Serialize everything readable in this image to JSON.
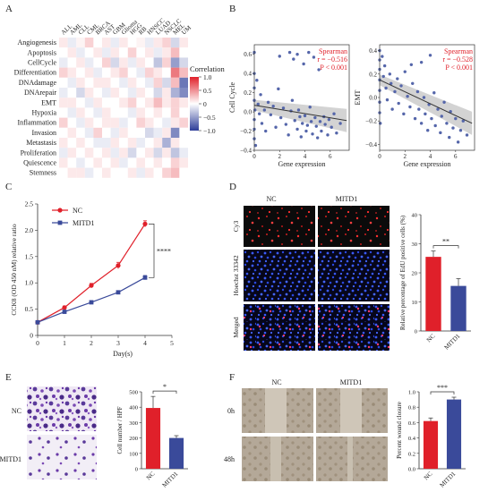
{
  "panels": {
    "a": "A",
    "b": "B",
    "c": "C",
    "d": "D",
    "e": "E",
    "f": "F"
  },
  "heatmap": {
    "rows": [
      "Angiogenesis",
      "Apoptosis",
      "CellCycle",
      "Differentiation",
      "DNAdamage",
      "DNArepair",
      "EMT",
      "Hypoxia",
      "Inflammation",
      "Invasion",
      "Metastasis",
      "Proliferation",
      "Quiescence",
      "Stemness"
    ],
    "cols": [
      "ALL",
      "AML",
      "CLL",
      "CML",
      "BRCA",
      "AST",
      "GBM",
      "Glioma",
      "HGG",
      "RB",
      "HNSCC",
      "LUAD",
      "NSCLC",
      "MEL",
      "UM"
    ],
    "legend_title": "Correlation",
    "legend_ticks": [
      "1.0",
      "0.5",
      "0",
      "−0.5",
      "−1.0"
    ],
    "values": [
      [
        0.1,
        -0.1,
        0.05,
        0.2,
        0.0,
        0.1,
        -0.1,
        0.1,
        0.0,
        0.05,
        -0.1,
        0.1,
        0.2,
        -0.2,
        0.1
      ],
      [
        0.0,
        0.1,
        -0.1,
        0.0,
        0.1,
        -0.1,
        0.1,
        0.0,
        0.2,
        0.0,
        0.1,
        -0.1,
        0.1,
        0.3,
        0.0
      ],
      [
        -0.1,
        0.0,
        0.1,
        -0.1,
        0.0,
        0.2,
        -0.2,
        0.1,
        -0.1,
        0.1,
        0.0,
        -0.3,
        0.2,
        -0.5,
        -0.2
      ],
      [
        0.2,
        0.1,
        0.0,
        0.1,
        -0.1,
        0.0,
        0.1,
        0.2,
        0.0,
        -0.1,
        0.2,
        0.1,
        0.0,
        0.6,
        0.3
      ],
      [
        0.0,
        -0.1,
        0.1,
        0.0,
        0.1,
        0.1,
        0.0,
        -0.1,
        0.1,
        0.0,
        -0.1,
        0.2,
        -0.2,
        0.3,
        -0.7
      ],
      [
        -0.1,
        0.0,
        -0.2,
        0.1,
        0.0,
        -0.1,
        0.1,
        0.0,
        -0.1,
        0.1,
        0.0,
        -0.2,
        0.1,
        -0.4,
        -0.6
      ],
      [
        0.1,
        0.1,
        0.0,
        -0.1,
        0.1,
        0.0,
        0.0,
        0.1,
        0.2,
        0.0,
        0.1,
        0.3,
        0.1,
        0.2,
        0.1
      ],
      [
        0.0,
        -0.1,
        0.1,
        0.0,
        -0.1,
        0.1,
        0.0,
        0.0,
        -0.1,
        0.1,
        0.0,
        0.1,
        0.0,
        0.2,
        0.0
      ],
      [
        0.2,
        0.0,
        -0.1,
        0.1,
        0.0,
        0.1,
        0.1,
        -0.1,
        0.0,
        0.2,
        0.1,
        0.0,
        -0.1,
        0.1,
        0.2
      ],
      [
        0.0,
        0.1,
        0.0,
        -0.1,
        0.2,
        0.0,
        -0.1,
        0.1,
        0.0,
        0.0,
        -0.2,
        -0.1,
        0.1,
        -0.6,
        0.0
      ],
      [
        0.1,
        0.0,
        0.1,
        0.0,
        -0.1,
        -0.1,
        0.1,
        0.0,
        0.1,
        -0.1,
        0.0,
        0.1,
        -0.4,
        0.1,
        0.0
      ],
      [
        -0.1,
        0.1,
        0.0,
        0.1,
        0.0,
        0.1,
        -0.1,
        0.1,
        -0.2,
        0.0,
        0.1,
        -0.2,
        0.1,
        -0.3,
        -0.1
      ],
      [
        0.1,
        0.0,
        -0.1,
        0.0,
        0.1,
        0.0,
        0.1,
        -0.1,
        0.0,
        0.1,
        0.0,
        0.1,
        0.0,
        0.2,
        0.1
      ],
      [
        0.0,
        0.1,
        0.1,
        -0.1,
        0.0,
        0.1,
        0.0,
        0.0,
        0.1,
        -0.1,
        0.1,
        0.0,
        0.2,
        0.3,
        0.0
      ]
    ]
  },
  "scatter": [
    {
      "ylabel": "Cell Cycle",
      "xlabel": "Gene expression",
      "stat_method": "Spearman",
      "stat_r": "r = −0.516",
      "stat_p": "P < 0.001",
      "xlim": [
        0,
        7.5
      ],
      "ylim": [
        -0.4,
        0.7
      ],
      "xticks": [
        "0",
        "2",
        "4",
        "6"
      ],
      "yticks": [
        "−0.4",
        "−0.2",
        "0.0",
        "0.2",
        "0.4",
        "0.6"
      ],
      "fit": [
        [
          0,
          0.07
        ],
        [
          7.3,
          -0.09
        ]
      ],
      "points": [
        [
          0,
          0.62
        ],
        [
          0,
          0.4
        ],
        [
          0,
          0.25
        ],
        [
          0,
          0.12
        ],
        [
          0.05,
          0.02
        ],
        [
          0,
          -0.08
        ],
        [
          0,
          -0.18
        ],
        [
          0,
          -0.28
        ],
        [
          0.1,
          -0.35
        ],
        [
          0.2,
          0.33
        ],
        [
          0.3,
          0.08
        ],
        [
          0.4,
          -0.02
        ],
        [
          0.5,
          0.18
        ],
        [
          0.6,
          -0.12
        ],
        [
          0.8,
          0.02
        ],
        [
          0.9,
          -0.2
        ],
        [
          1.1,
          0.1
        ],
        [
          1.3,
          -0.03
        ],
        [
          1.5,
          0.06
        ],
        [
          1.7,
          -0.16
        ],
        [
          1.9,
          0.24
        ],
        [
          2.1,
          -0.06
        ],
        [
          2.3,
          0.04
        ],
        [
          2.5,
          -0.13
        ],
        [
          2.7,
          -0.24
        ],
        [
          2.9,
          0.01
        ],
        [
          3.0,
          0.12
        ],
        [
          3.2,
          -0.09
        ],
        [
          3.4,
          -0.18
        ],
        [
          3.5,
          0.02
        ],
        [
          3.6,
          -0.05
        ],
        [
          3.7,
          -0.26
        ],
        [
          3.8,
          -0.12
        ],
        [
          4.0,
          -0.04
        ],
        [
          4.1,
          -0.2
        ],
        [
          4.2,
          -0.14
        ],
        [
          4.4,
          0.05
        ],
        [
          4.5,
          -0.1
        ],
        [
          4.6,
          -0.23
        ],
        [
          4.8,
          -0.06
        ],
        [
          4.9,
          -0.15
        ],
        [
          5.0,
          -0.27
        ],
        [
          5.2,
          -0.1
        ],
        [
          5.3,
          -0.2
        ],
        [
          5.5,
          -0.05
        ],
        [
          5.6,
          -0.13
        ],
        [
          5.8,
          -0.24
        ],
        [
          5.9,
          -0.08
        ],
        [
          6.1,
          -0.16
        ],
        [
          6.3,
          -0.02
        ],
        [
          6.5,
          -0.22
        ],
        [
          6.8,
          -0.12
        ],
        [
          2.0,
          0.58
        ],
        [
          2.8,
          0.62
        ],
        [
          3.1,
          0.55
        ],
        [
          3.4,
          0.6
        ],
        [
          3.9,
          0.5
        ],
        [
          4.3,
          0.62
        ],
        [
          4.7,
          0.57
        ],
        [
          5.1,
          0.44
        ]
      ]
    },
    {
      "ylabel": "EMT",
      "xlabel": "Gene expression",
      "stat_method": "Spearman",
      "stat_r": "r = −0.528",
      "stat_p": "P < 0.001",
      "xlim": [
        0,
        7.5
      ],
      "ylim": [
        -0.45,
        0.45
      ],
      "xticks": [
        "0",
        "2",
        "4",
        "6"
      ],
      "yticks": [
        "−0.4",
        "−0.2",
        "0.0",
        "0.2",
        "0.4"
      ],
      "fit": [
        [
          0,
          0.15
        ],
        [
          7.3,
          -0.22
        ]
      ],
      "points": [
        [
          0,
          0.4
        ],
        [
          0,
          0.32
        ],
        [
          0,
          0.24
        ],
        [
          0,
          0.15
        ],
        [
          0,
          0.06
        ],
        [
          0,
          -0.04
        ],
        [
          0,
          -0.13
        ],
        [
          0.05,
          -0.22
        ],
        [
          0.2,
          0.35
        ],
        [
          0.3,
          0.18
        ],
        [
          0.4,
          0.27
        ],
        [
          0.5,
          0.08
        ],
        [
          0.6,
          -0.02
        ],
        [
          0.8,
          0.2
        ],
        [
          0.9,
          0.12
        ],
        [
          1.0,
          -0.1
        ],
        [
          1.2,
          0.05
        ],
        [
          1.4,
          0.16
        ],
        [
          1.5,
          -0.05
        ],
        [
          1.7,
          0.1
        ],
        [
          1.9,
          -0.14
        ],
        [
          2.0,
          0.22
        ],
        [
          2.2,
          0.01
        ],
        [
          2.4,
          -0.08
        ],
        [
          2.6,
          0.12
        ],
        [
          2.8,
          -0.18
        ],
        [
          3.0,
          0.05
        ],
        [
          3.1,
          -0.1
        ],
        [
          3.3,
          -0.22
        ],
        [
          3.5,
          0.0
        ],
        [
          3.6,
          -0.14
        ],
        [
          3.8,
          -0.28
        ],
        [
          3.9,
          -0.06
        ],
        [
          4.1,
          -0.18
        ],
        [
          4.3,
          0.04
        ],
        [
          4.4,
          -0.24
        ],
        [
          4.6,
          -0.1
        ],
        [
          4.8,
          -0.3
        ],
        [
          4.9,
          -0.16
        ],
        [
          5.1,
          -0.04
        ],
        [
          5.3,
          -0.22
        ],
        [
          5.5,
          -0.34
        ],
        [
          5.6,
          -0.12
        ],
        [
          5.8,
          -0.26
        ],
        [
          6.0,
          -0.18
        ],
        [
          6.2,
          -0.38
        ],
        [
          6.4,
          -0.28
        ],
        [
          6.6,
          -0.2
        ],
        [
          6.9,
          -0.32
        ],
        [
          3.3,
          0.3
        ],
        [
          4.0,
          0.36
        ],
        [
          2.5,
          0.28
        ]
      ]
    }
  ],
  "cck8": {
    "ylabel": "CCK8 (OD 450 nM) relative ratio",
    "xlabel": "Day(s)",
    "xlim": [
      0,
      5
    ],
    "ylim": [
      0,
      2.5
    ],
    "xticks": [
      "0",
      "1",
      "2",
      "3",
      "4",
      "5"
    ],
    "yticks": [
      "0",
      "0.5",
      "1.0",
      "1.5",
      "2.0",
      "2.5"
    ],
    "x": [
      0,
      1,
      2,
      3,
      4
    ],
    "series": [
      {
        "name": "NC",
        "color": "#e0202a",
        "values": [
          0.25,
          0.53,
          0.95,
          1.33,
          2.12
        ],
        "errors": [
          0.02,
          0.03,
          0.04,
          0.06,
          0.06
        ]
      },
      {
        "name": "MITD1",
        "color": "#3a4a9a",
        "values": [
          0.25,
          0.45,
          0.63,
          0.82,
          1.1
        ],
        "errors": [
          0.02,
          0.02,
          0.03,
          0.03,
          0.04
        ]
      }
    ],
    "significance": "****"
  },
  "edu": {
    "col_labels": [
      "NC",
      "MITD1"
    ],
    "row_labels": [
      "Cy3",
      "Hoechst 33342",
      "Merged"
    ],
    "bar": {
      "ylabel": "Relative percentage of EdU positive cells (%)",
      "ylim": [
        0,
        40
      ],
      "yticks": [
        "0",
        "10",
        "20",
        "30",
        "40"
      ],
      "categories": [
        "NC",
        "MITD1"
      ],
      "values": [
        25.5,
        15.5
      ],
      "errors": [
        2.0,
        2.5
      ],
      "colors": [
        "#e0202a",
        "#3a4a9a"
      ],
      "significance": "**"
    }
  },
  "transwell": {
    "row_labels": [
      "NC",
      "MITD1"
    ],
    "bar": {
      "ylabel": "Cell number / HPF",
      "ylim": [
        0,
        500
      ],
      "yticks": [
        "0",
        "100",
        "200",
        "300",
        "400",
        "500"
      ],
      "categories": [
        "NC",
        "MITD1"
      ],
      "values": [
        395,
        200
      ],
      "errors": [
        75,
        15
      ],
      "colors": [
        "#e0202a",
        "#3a4a9a"
      ],
      "significance": "*"
    }
  },
  "wound": {
    "col_labels": [
      "NC",
      "MITD1"
    ],
    "row_labels": [
      "0h",
      "48h"
    ],
    "bar": {
      "ylabel": "Percent wound closure",
      "ylim": [
        0,
        1.0
      ],
      "yticks": [
        "0.0",
        "0.2",
        "0.4",
        "0.6",
        "0.8",
        "1.0"
      ],
      "categories": [
        "NC",
        "MITD1"
      ],
      "values": [
        0.62,
        0.9
      ],
      "errors": [
        0.04,
        0.03
      ],
      "colors": [
        "#e0202a",
        "#3a4a9a"
      ],
      "significance": "***"
    }
  },
  "colors": {
    "red": "#e0202a",
    "blue": "#3a4a9a",
    "scatter_dot": "#5566aa",
    "stat_text": "#e0202a",
    "ci_band": "#c8c8c8"
  }
}
